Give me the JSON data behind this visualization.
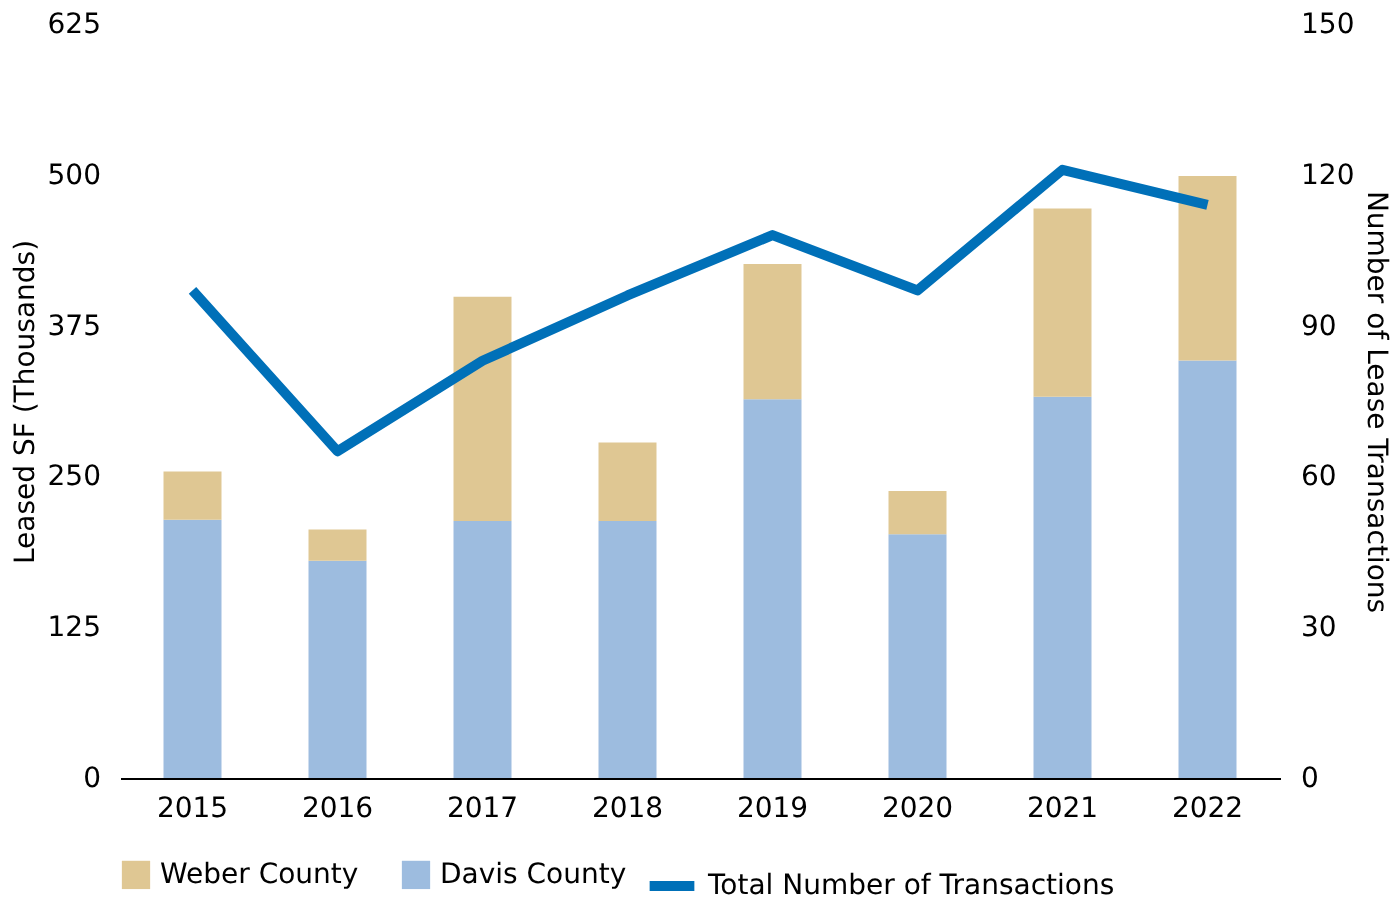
{
  "chart_data": {
    "type": "bar",
    "stacked": true,
    "categories": [
      "2015",
      "2016",
      "2017",
      "2018",
      "2019",
      "2020",
      "2021",
      "2022"
    ],
    "series": [
      {
        "name": "Davis County",
        "color": "#9dbcdf",
        "values": [
          214,
          180,
          213,
          213,
          314,
          202,
          316,
          346
        ]
      },
      {
        "name": "Weber County",
        "color": "#dfc793",
        "values": [
          40,
          26,
          186,
          65,
          112,
          36,
          156,
          153
        ]
      },
      {
        "name": "Total Number of Transactions",
        "type": "line",
        "axis": "y2",
        "color": "#0070b8",
        "values": [
          97,
          65,
          83,
          96,
          108,
          97,
          121,
          114
        ]
      }
    ],
    "ylabel": "Leased SF (Thousands)",
    "y2label": "Number of Lease Transactions",
    "ylim": [
      0,
      625
    ],
    "yticks": [
      0,
      125,
      250,
      375,
      500,
      625
    ],
    "y2lim": [
      0,
      150
    ],
    "y2ticks": [
      0,
      30,
      60,
      90,
      120,
      150
    ],
    "grid": false,
    "legend": "bottom",
    "marker": "none",
    "line_style": "solid"
  }
}
